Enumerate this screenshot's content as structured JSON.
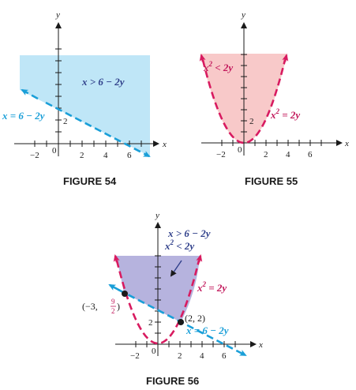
{
  "fig54": {
    "caption": "FIGURE 54",
    "x_label": "x",
    "y_label": "y",
    "ineq_label": "x > 6 − 2y",
    "line_label": "x = 6 − 2y",
    "y_tick": "2",
    "x_ticks": [
      "−2",
      "0",
      "2",
      "4",
      "6"
    ]
  },
  "fig55": {
    "caption": "FIGURE 55",
    "x_label": "x",
    "y_label": "y",
    "ineq_base": "x",
    "ineq_exp": "2",
    "ineq_rest": " < 2y",
    "curve_base": "x",
    "curve_exp": "2",
    "curve_rest": " = 2y",
    "y_tick": "2",
    "x_ticks": [
      "−2",
      "0",
      "2",
      "4",
      "6"
    ]
  },
  "fig56": {
    "caption": "FIGURE 56",
    "x_label": "x",
    "y_label": "y",
    "ineq1": "x > 6 − 2y",
    "ineq2_base": "x",
    "ineq2_exp": "2",
    "ineq2_rest": " < 2y",
    "curve_base": "x",
    "curve_exp": "2",
    "curve_rest": " = 2y",
    "line_label": "x = 6 − 2y",
    "point1_open": "(−3, ",
    "point1_num": "9",
    "point1_den": "2",
    "point1_close": ")",
    "point2": "(2, 2)",
    "y_tick": "2",
    "x_ticks": [
      "−2",
      "0",
      "2",
      "4",
      "6"
    ]
  },
  "colors": {
    "fill54": "#bfe6f7",
    "fill55": "#f8c9c9",
    "fill56": "#b6b3de",
    "line": "#1a9fd8",
    "parabola": "#d81b60",
    "axis": "#1a1a1a"
  }
}
